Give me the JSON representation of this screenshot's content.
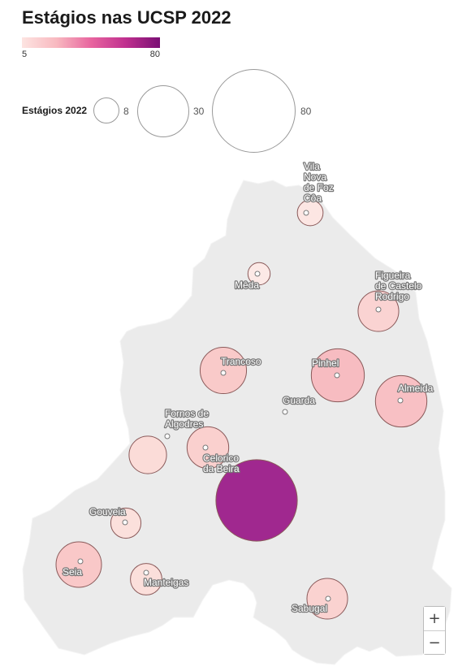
{
  "title": "Estágios nas UCSP 2022",
  "color_legend": {
    "min": "5",
    "max": "80",
    "colors": [
      "#fde4e1",
      "#f8b9c0",
      "#e8659f",
      "#c0308f",
      "#7a0f74"
    ]
  },
  "size_legend": {
    "label": "Estágios 2022",
    "values": [
      "8",
      "30",
      "80"
    ]
  },
  "map": {
    "region_fill": "#ebebeb",
    "bubble_stroke": "#8a5a5a"
  },
  "places": [
    {
      "name": "Vila Nova de Foz Côa",
      "lines": [
        "Vila",
        "Nova",
        "de Foz",
        "Côa"
      ],
      "value": 8,
      "color": "#fce6e3"
    },
    {
      "name": "Mêda",
      "lines": [
        "Mêda"
      ],
      "value": 6,
      "color": "#fce9e6"
    },
    {
      "name": "Figueira de Castelo Rodrigo",
      "lines": [
        "Figueira",
        "de Castelo",
        "Rodrigo"
      ],
      "value": 20,
      "color": "#fad3d2"
    },
    {
      "name": "Trancoso",
      "lines": [
        "Trancoso"
      ],
      "value": 26,
      "color": "#f9cac9"
    },
    {
      "name": "Pinhel",
      "lines": [
        "Pinhel"
      ],
      "value": 34,
      "color": "#f7bcc1"
    },
    {
      "name": "Almeida",
      "lines": [
        "Almeida"
      ],
      "value": 32,
      "color": "#f8c0c4"
    },
    {
      "name": "Guarda",
      "lines": [
        "Guarda"
      ],
      "value": null,
      "color": null
    },
    {
      "name": "Fornos de Algodres",
      "lines": [
        "Fornos de",
        "Algodres"
      ],
      "value": null,
      "color": null
    },
    {
      "name": "Celorico da Beira",
      "lines": [
        "Celorico",
        "da Beira"
      ],
      "value": 21,
      "color": "#fad0ce"
    },
    {
      "name": "",
      "lines": [],
      "value": 17,
      "color": "#fbdcd8"
    },
    {
      "name": "",
      "lines": [],
      "value": 80,
      "color": "#a0288f"
    },
    {
      "name": "Gouveia",
      "lines": [
        "Gouveia"
      ],
      "value": 11,
      "color": "#fbe0dc"
    },
    {
      "name": "Seia",
      "lines": [
        "Seia"
      ],
      "value": 25,
      "color": "#f9c8c8"
    },
    {
      "name": "Manteigas",
      "lines": [
        "Manteigas"
      ],
      "value": 12,
      "color": "#fbdfdb"
    },
    {
      "name": "Sabugal",
      "lines": [
        "Sabugal"
      ],
      "value": 20,
      "color": "#fad2d0"
    }
  ],
  "zoom": {
    "in": "+",
    "out": "−"
  }
}
